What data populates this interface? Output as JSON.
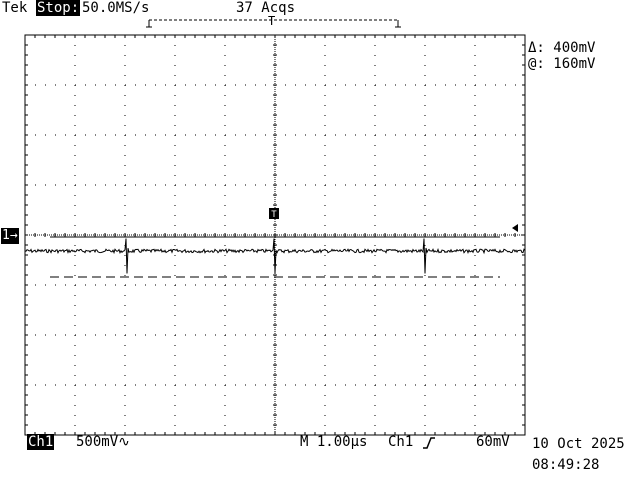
{
  "header": {
    "brand": "Tek",
    "run_state": "Stop:",
    "sample_rate": "50.0MS/s",
    "acquisitions": "37 Acqs"
  },
  "cursor_readout": {
    "delta": "Δ: 400mV",
    "at": "@: 160mV"
  },
  "channel_marker": "1→",
  "trigger_marker": "T",
  "footer": {
    "channel_label": "Ch1",
    "volts_per_div": "500mV∿",
    "timebase": "M 1.00µs",
    "trigger_source": "Ch1",
    "trigger_slope_icon": "rising-edge-icon",
    "trigger_level": "60mV",
    "date": "10 Oct 2025",
    "time": "08:49:28"
  },
  "chart_data": {
    "type": "line",
    "grid": true,
    "divisions": {
      "x": 10,
      "y": 8
    },
    "x_unit_per_div": "1.00µs",
    "y_unit_per_div": "500mV",
    "xlim": [
      0,
      10
    ],
    "ylim": [
      -4,
      4
    ],
    "cursors": [
      {
        "kind": "solid",
        "y_div": 0.32
      },
      {
        "kind": "dashed",
        "y_div": -0.48
      }
    ],
    "series": [
      {
        "baseline_div": 0,
        "noise_div": 0.035,
        "spikes": [
          {
            "x_div": 2.04,
            "depth_div": -0.45,
            "up_div": 0.25
          },
          {
            "x_div": 5.0,
            "depth_div": -0.45,
            "up_div": 0.25
          },
          {
            "x_div": 8.0,
            "depth_div": -0.45,
            "up_div": 0.25
          }
        ]
      }
    ]
  }
}
